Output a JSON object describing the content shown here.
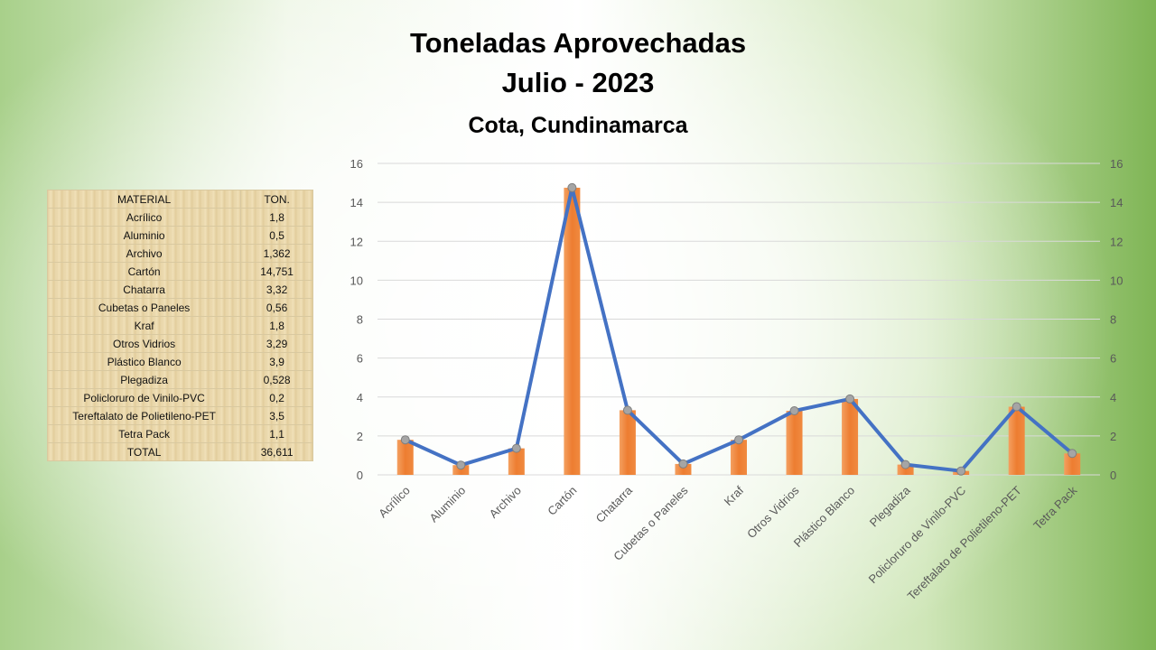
{
  "title": {
    "line1": "Toneladas Aprovechadas",
    "line2": "Julio - 2023",
    "line3": "Cota, Cundinamarca"
  },
  "table": {
    "header": [
      "MATERIAL",
      "TON."
    ],
    "rows": [
      [
        "Acrílico",
        "1,8"
      ],
      [
        "Aluminio",
        "0,5"
      ],
      [
        "Archivo",
        "1,362"
      ],
      [
        "Cartón",
        "14,751"
      ],
      [
        "Chatarra",
        "3,32"
      ],
      [
        "Cubetas o Paneles",
        "0,56"
      ],
      [
        "Kraf",
        "1,8"
      ],
      [
        "Otros Vidrios",
        "3,29"
      ],
      [
        "Plástico Blanco",
        "3,9"
      ],
      [
        "Plegadiza",
        "0,528"
      ],
      [
        "Policloruro de Vinilo-PVC",
        "0,2"
      ],
      [
        "Tereftalato de Polietileno-PET",
        "3,5"
      ],
      [
        "Tetra Pack",
        "1,1"
      ]
    ],
    "total": [
      "TOTAL",
      "36,611"
    ]
  },
  "colors": {
    "bar": "#ed7d31",
    "line": "#4472c4",
    "marker": "#a5a5a5",
    "grid": "#d9d9d9",
    "tick_text": "#595959"
  },
  "chart_data": {
    "type": "bar",
    "categories": [
      "Acrílico",
      "Aluminio",
      "Archivo",
      "Cartón",
      "Chatarra",
      "Cubetas o Paneles",
      "Kraf",
      "Otros Vidrios",
      "Plástico Blanco",
      "Plegadiza",
      "Policloruro de Vinilo-PVC",
      "Tereftalato de Polietileno-PET",
      "Tetra Pack"
    ],
    "series": [
      {
        "type": "bar",
        "values": [
          1.8,
          0.5,
          1.362,
          14.751,
          3.32,
          0.56,
          1.8,
          3.29,
          3.9,
          0.528,
          0.2,
          3.5,
          1.1
        ]
      },
      {
        "type": "line",
        "values": [
          1.8,
          0.5,
          1.362,
          14.751,
          3.32,
          0.56,
          1.8,
          3.29,
          3.9,
          0.528,
          0.2,
          3.5,
          1.1
        ]
      }
    ],
    "ylim": [
      0,
      16
    ],
    "yticks": [
      0,
      2,
      4,
      6,
      8,
      10,
      12,
      14,
      16
    ],
    "secondary_axis": true,
    "grid": true,
    "legend": "none"
  }
}
